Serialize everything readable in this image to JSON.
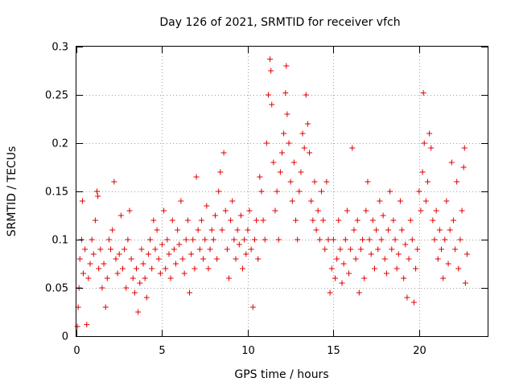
{
  "chart_data": {
    "type": "scatter",
    "title": "Day 126 of 2021, SRMTID for receiver vfch",
    "xlabel": "GPS time / hours",
    "ylabel": "SRMTID / TECUs",
    "xlim": [
      0,
      24
    ],
    "ylim": [
      0,
      0.3
    ],
    "xticks": [
      0,
      5,
      10,
      15,
      20
    ],
    "xtick_labels": [
      "0",
      "5",
      "10",
      "15",
      "20"
    ],
    "yticks": [
      0,
      0.05,
      0.1,
      0.15,
      0.2,
      0.25,
      0.3
    ],
    "ytick_labels": [
      "0",
      "0.05",
      "0.1",
      "0.15",
      "0.2",
      "0.25",
      "0.3"
    ],
    "grid": true,
    "marker": "+",
    "color": "#e00000",
    "series": [
      {
        "name": "vfch",
        "points": [
          [
            0.05,
            0.01
          ],
          [
            0.1,
            0.03
          ],
          [
            0.15,
            0.05
          ],
          [
            0.2,
            0.08
          ],
          [
            0.3,
            0.1
          ],
          [
            0.35,
            0.14
          ],
          [
            0.4,
            0.065
          ],
          [
            0.5,
            0.09
          ],
          [
            0.6,
            0.012
          ],
          [
            0.7,
            0.06
          ],
          [
            0.8,
            0.075
          ],
          [
            0.9,
            0.1
          ],
          [
            1.0,
            0.085
          ],
          [
            1.1,
            0.12
          ],
          [
            1.2,
            0.15
          ],
          [
            1.25,
            0.145
          ],
          [
            1.3,
            0.07
          ],
          [
            1.4,
            0.09
          ],
          [
            1.5,
            0.05
          ],
          [
            1.6,
            0.075
          ],
          [
            1.7,
            0.03
          ],
          [
            1.8,
            0.06
          ],
          [
            1.9,
            0.1
          ],
          [
            2.0,
            0.09
          ],
          [
            2.1,
            0.11
          ],
          [
            2.2,
            0.16
          ],
          [
            2.3,
            0.08
          ],
          [
            2.4,
            0.065
          ],
          [
            2.5,
            0.085
          ],
          [
            2.6,
            0.125
          ],
          [
            2.7,
            0.07
          ],
          [
            2.8,
            0.09
          ],
          [
            2.9,
            0.05
          ],
          [
            3.0,
            0.1
          ],
          [
            3.1,
            0.13
          ],
          [
            3.2,
            0.08
          ],
          [
            3.3,
            0.06
          ],
          [
            3.4,
            0.045
          ],
          [
            3.5,
            0.07
          ],
          [
            3.6,
            0.025
          ],
          [
            3.7,
            0.055
          ],
          [
            3.8,
            0.09
          ],
          [
            3.9,
            0.075
          ],
          [
            4.0,
            0.06
          ],
          [
            4.1,
            0.04
          ],
          [
            4.2,
            0.085
          ],
          [
            4.3,
            0.1
          ],
          [
            4.4,
            0.07
          ],
          [
            4.5,
            0.12
          ],
          [
            4.6,
            0.09
          ],
          [
            4.7,
            0.11
          ],
          [
            4.8,
            0.08
          ],
          [
            4.9,
            0.065
          ],
          [
            5.0,
            0.095
          ],
          [
            5.1,
            0.13
          ],
          [
            5.2,
            0.07
          ],
          [
            5.3,
            0.1
          ],
          [
            5.4,
            0.085
          ],
          [
            5.5,
            0.06
          ],
          [
            5.6,
            0.12
          ],
          [
            5.7,
            0.09
          ],
          [
            5.8,
            0.075
          ],
          [
            5.9,
            0.11
          ],
          [
            6.0,
            0.095
          ],
          [
            6.1,
            0.14
          ],
          [
            6.2,
            0.08
          ],
          [
            6.3,
            0.065
          ],
          [
            6.4,
            0.1
          ],
          [
            6.5,
            0.12
          ],
          [
            6.6,
            0.045
          ],
          [
            6.7,
            0.085
          ],
          [
            6.8,
            0.1
          ],
          [
            6.9,
            0.07
          ],
          [
            7.0,
            0.165
          ],
          [
            7.1,
            0.11
          ],
          [
            7.2,
            0.09
          ],
          [
            7.3,
            0.12
          ],
          [
            7.4,
            0.08
          ],
          [
            7.5,
            0.1
          ],
          [
            7.6,
            0.135
          ],
          [
            7.7,
            0.07
          ],
          [
            7.8,
            0.09
          ],
          [
            7.9,
            0.11
          ],
          [
            8.0,
            0.1
          ],
          [
            8.1,
            0.125
          ],
          [
            8.2,
            0.08
          ],
          [
            8.3,
            0.15
          ],
          [
            8.4,
            0.17
          ],
          [
            8.5,
            0.11
          ],
          [
            8.6,
            0.19
          ],
          [
            8.7,
            0.13
          ],
          [
            8.8,
            0.09
          ],
          [
            8.9,
            0.06
          ],
          [
            9.0,
            0.12
          ],
          [
            9.1,
            0.14
          ],
          [
            9.2,
            0.1
          ],
          [
            9.3,
            0.08
          ],
          [
            9.4,
            0.11
          ],
          [
            9.5,
            0.095
          ],
          [
            9.6,
            0.125
          ],
          [
            9.7,
            0.07
          ],
          [
            9.8,
            0.1
          ],
          [
            9.9,
            0.085
          ],
          [
            10.0,
            0.11
          ],
          [
            10.1,
            0.13
          ],
          [
            10.2,
            0.09
          ],
          [
            10.3,
            0.03
          ],
          [
            10.4,
            0.1
          ],
          [
            10.5,
            0.12
          ],
          [
            10.6,
            0.08
          ],
          [
            10.7,
            0.165
          ],
          [
            10.8,
            0.15
          ],
          [
            10.9,
            0.12
          ],
          [
            11.0,
            0.1
          ],
          [
            11.1,
            0.2
          ],
          [
            11.2,
            0.25
          ],
          [
            11.3,
            0.287
          ],
          [
            11.35,
            0.275
          ],
          [
            11.4,
            0.24
          ],
          [
            11.5,
            0.18
          ],
          [
            11.6,
            0.13
          ],
          [
            11.7,
            0.15
          ],
          [
            11.8,
            0.1
          ],
          [
            11.9,
            0.17
          ],
          [
            12.0,
            0.19
          ],
          [
            12.1,
            0.21
          ],
          [
            12.2,
            0.252
          ],
          [
            12.25,
            0.28
          ],
          [
            12.3,
            0.23
          ],
          [
            12.4,
            0.2
          ],
          [
            12.5,
            0.16
          ],
          [
            12.6,
            0.14
          ],
          [
            12.7,
            0.18
          ],
          [
            12.8,
            0.12
          ],
          [
            12.9,
            0.1
          ],
          [
            13.0,
            0.15
          ],
          [
            13.1,
            0.17
          ],
          [
            13.2,
            0.21
          ],
          [
            13.3,
            0.195
          ],
          [
            13.4,
            0.25
          ],
          [
            13.5,
            0.22
          ],
          [
            13.6,
            0.19
          ],
          [
            13.7,
            0.14
          ],
          [
            13.8,
            0.12
          ],
          [
            13.9,
            0.16
          ],
          [
            14.0,
            0.11
          ],
          [
            14.1,
            0.13
          ],
          [
            14.2,
            0.1
          ],
          [
            14.3,
            0.15
          ],
          [
            14.4,
            0.12
          ],
          [
            14.5,
            0.09
          ],
          [
            14.6,
            0.16
          ],
          [
            14.7,
            0.1
          ],
          [
            14.8,
            0.045
          ],
          [
            14.9,
            0.07
          ],
          [
            15.0,
            0.1
          ],
          [
            15.1,
            0.06
          ],
          [
            15.2,
            0.08
          ],
          [
            15.3,
            0.12
          ],
          [
            15.4,
            0.09
          ],
          [
            15.5,
            0.055
          ],
          [
            15.6,
            0.075
          ],
          [
            15.7,
            0.1
          ],
          [
            15.8,
            0.13
          ],
          [
            15.9,
            0.065
          ],
          [
            16.0,
            0.09
          ],
          [
            16.1,
            0.195
          ],
          [
            16.2,
            0.11
          ],
          [
            16.3,
            0.08
          ],
          [
            16.4,
            0.12
          ],
          [
            16.5,
            0.045
          ],
          [
            16.6,
            0.09
          ],
          [
            16.7,
            0.1
          ],
          [
            16.8,
            0.06
          ],
          [
            16.9,
            0.13
          ],
          [
            17.0,
            0.16
          ],
          [
            17.1,
            0.1
          ],
          [
            17.2,
            0.085
          ],
          [
            17.3,
            0.12
          ],
          [
            17.4,
            0.07
          ],
          [
            17.5,
            0.11
          ],
          [
            17.6,
            0.09
          ],
          [
            17.7,
            0.14
          ],
          [
            17.8,
            0.1
          ],
          [
            17.9,
            0.125
          ],
          [
            18.0,
            0.08
          ],
          [
            18.1,
            0.065
          ],
          [
            18.2,
            0.11
          ],
          [
            18.3,
            0.15
          ],
          [
            18.4,
            0.09
          ],
          [
            18.5,
            0.12
          ],
          [
            18.6,
            0.1
          ],
          [
            18.7,
            0.07
          ],
          [
            18.8,
            0.085
          ],
          [
            18.9,
            0.14
          ],
          [
            19.0,
            0.11
          ],
          [
            19.1,
            0.06
          ],
          [
            19.2,
            0.095
          ],
          [
            19.3,
            0.04
          ],
          [
            19.4,
            0.08
          ],
          [
            19.5,
            0.12
          ],
          [
            19.6,
            0.1
          ],
          [
            19.7,
            0.035
          ],
          [
            19.8,
            0.07
          ],
          [
            19.9,
            0.09
          ],
          [
            20.0,
            0.15
          ],
          [
            20.1,
            0.13
          ],
          [
            20.2,
            0.17
          ],
          [
            20.25,
            0.252
          ],
          [
            20.3,
            0.2
          ],
          [
            20.4,
            0.14
          ],
          [
            20.5,
            0.16
          ],
          [
            20.6,
            0.21
          ],
          [
            20.7,
            0.195
          ],
          [
            20.8,
            0.12
          ],
          [
            20.9,
            0.1
          ],
          [
            21.0,
            0.13
          ],
          [
            21.1,
            0.08
          ],
          [
            21.2,
            0.11
          ],
          [
            21.3,
            0.09
          ],
          [
            21.4,
            0.06
          ],
          [
            21.5,
            0.1
          ],
          [
            21.6,
            0.14
          ],
          [
            21.7,
            0.075
          ],
          [
            21.8,
            0.11
          ],
          [
            21.9,
            0.18
          ],
          [
            22.0,
            0.12
          ],
          [
            22.1,
            0.09
          ],
          [
            22.2,
            0.16
          ],
          [
            22.3,
            0.07
          ],
          [
            22.4,
            0.1
          ],
          [
            22.5,
            0.13
          ],
          [
            22.6,
            0.175
          ],
          [
            22.65,
            0.195
          ],
          [
            22.7,
            0.055
          ],
          [
            22.8,
            0.085
          ]
        ]
      }
    ]
  }
}
